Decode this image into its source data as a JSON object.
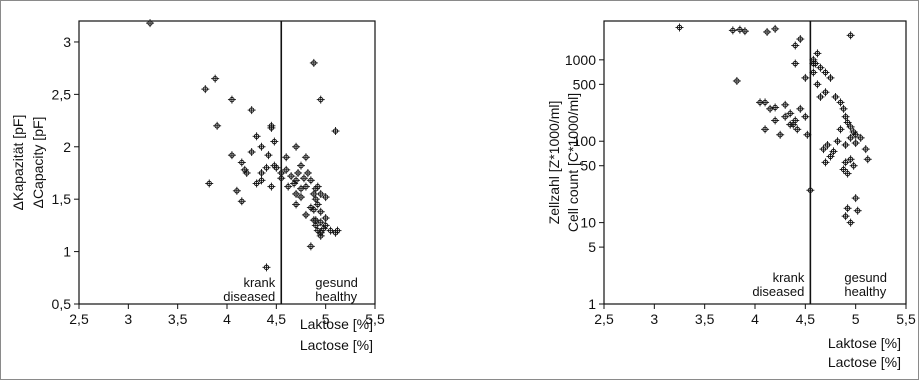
{
  "chart_data": [
    {
      "type": "scatter",
      "title": "",
      "xlabel": [
        "Laktose [%]",
        "Lactose [%]"
      ],
      "ylabel": [
        "ΔKapazität [pF]",
        "ΔCapacity [pF]"
      ],
      "xlim": [
        2.5,
        5.5
      ],
      "ylim": [
        0.5,
        3.2
      ],
      "xticks": [
        "2,5",
        "3",
        "3,5",
        "4",
        "4,5",
        "5",
        "5,5"
      ],
      "xtick_values": [
        2.5,
        3,
        3.5,
        4,
        4.5,
        5,
        5.5
      ],
      "yticks": [
        "0,5",
        "1",
        "1,5",
        "2",
        "2,5",
        "3"
      ],
      "ytick_values": [
        0.5,
        1,
        1.5,
        2,
        2.5,
        3
      ],
      "scale_y": "linear",
      "threshold_x": 4.55,
      "annotations": {
        "left": [
          "krank",
          "diseased"
        ],
        "right": [
          "gesund",
          "healthy"
        ]
      },
      "grid": false,
      "x": [
        3.22,
        3.78,
        3.88,
        3.9,
        3.82,
        4.1,
        4.15,
        4.3,
        4.05,
        4.45,
        4.48,
        4.42,
        4.48,
        4.35,
        4.25,
        4.15,
        4.2,
        4.35,
        4.45,
        4.55,
        4.45,
        4.5,
        4.6,
        4.55,
        4.3,
        4.25,
        4.05,
        4.18,
        4.35,
        4.4,
        4.62,
        4.65,
        4.6,
        4.7,
        4.72,
        4.75,
        4.7,
        4.68,
        4.75,
        4.8,
        4.78,
        4.82,
        4.85,
        4.88,
        4.9,
        4.92,
        4.95,
        4.85,
        4.8,
        4.9,
        4.95,
        5.0,
        4.98,
        4.92,
        4.88,
        4.9,
        4.95,
        5.0,
        4.95,
        4.9,
        4.95,
        5.05,
        5.1,
        5.0,
        4.92,
        4.88,
        5.1,
        5.12,
        4.88,
        4.95,
        4.7,
        4.85,
        4.8,
        4.75,
        4.7,
        4.4
      ],
      "y": [
        3.18,
        2.55,
        2.65,
        2.2,
        1.65,
        1.58,
        1.48,
        1.65,
        2.45,
        2.2,
        2.05,
        1.92,
        1.82,
        2.0,
        1.95,
        1.85,
        1.75,
        1.68,
        1.62,
        1.75,
        2.18,
        1.8,
        1.9,
        1.7,
        2.1,
        2.35,
        1.92,
        1.78,
        1.75,
        1.8,
        1.62,
        1.72,
        1.78,
        1.68,
        1.75,
        1.6,
        1.55,
        1.65,
        1.52,
        1.62,
        1.7,
        1.75,
        1.68,
        1.55,
        1.5,
        1.45,
        1.38,
        1.42,
        1.35,
        1.3,
        1.28,
        1.25,
        1.22,
        1.2,
        1.4,
        1.6,
        1.55,
        1.32,
        1.18,
        1.25,
        1.15,
        1.2,
        1.18,
        1.52,
        1.62,
        1.3,
        2.15,
        1.2,
        2.8,
        2.45,
        2.0,
        1.05,
        1.9,
        1.82,
        1.45,
        0.85
      ]
    },
    {
      "type": "scatter",
      "title": "",
      "xlabel": [
        "Laktose [%]",
        "Lactose [%]"
      ],
      "ylabel": [
        "Zellzahl [Z*1000/ml]",
        "Cell count [C*1000/ml]"
      ],
      "xlim": [
        2.5,
        5.5
      ],
      "ylim": [
        1,
        3000
      ],
      "xticks": [
        "2,5",
        "3",
        "3,5",
        "4",
        "4,5",
        "5",
        "5,5"
      ],
      "xtick_values": [
        2.5,
        3,
        3.5,
        4,
        4.5,
        5,
        5.5
      ],
      "yticks": [
        "1",
        "5",
        "10",
        "50",
        "100",
        "500",
        "1000"
      ],
      "ytick_values": [
        1,
        5,
        10,
        50,
        100,
        500,
        1000
      ],
      "scale_y": "log",
      "threshold_x": 4.55,
      "annotations": {
        "left": [
          "krank",
          "diseased"
        ],
        "right": [
          "gesund",
          "healthy"
        ]
      },
      "grid": false,
      "x": [
        3.25,
        3.78,
        3.85,
        3.9,
        4.12,
        4.2,
        4.45,
        4.4,
        4.95,
        3.82,
        4.1,
        4.2,
        4.3,
        4.35,
        4.45,
        4.5,
        4.4,
        4.38,
        4.42,
        4.52,
        4.6,
        4.65,
        4.58,
        4.62,
        4.7,
        4.75,
        4.8,
        4.85,
        4.88,
        4.9,
        4.92,
        4.95,
        4.98,
        5.0,
        5.05,
        4.85,
        4.82,
        4.9,
        4.95,
        5.0,
        5.1,
        5.12,
        4.78,
        4.75,
        4.7,
        4.68,
        4.72,
        4.88,
        4.92,
        4.9,
        4.95,
        4.98,
        4.92,
        4.9,
        4.95,
        5.0,
        5.02,
        4.2,
        4.3,
        4.1,
        4.25,
        4.35,
        4.4,
        4.05,
        4.15,
        4.5,
        4.58,
        4.62,
        4.55,
        4.7,
        4.65,
        4.58
      ],
      "y": [
        2500,
        2300,
        2350,
        2250,
        2200,
        2400,
        1800,
        1500,
        2000,
        550,
        300,
        260,
        280,
        220,
        250,
        200,
        180,
        160,
        140,
        120,
        900,
        800,
        1000,
        1200,
        700,
        600,
        350,
        300,
        250,
        200,
        170,
        150,
        130,
        120,
        110,
        140,
        100,
        90,
        110,
        95,
        80,
        60,
        75,
        65,
        55,
        80,
        90,
        45,
        40,
        55,
        60,
        50,
        15,
        12,
        10,
        20,
        14,
        180,
        200,
        140,
        120,
        160,
        900,
        300,
        250,
        600,
        700,
        500,
        25,
        400,
        350,
        900
      ]
    }
  ]
}
